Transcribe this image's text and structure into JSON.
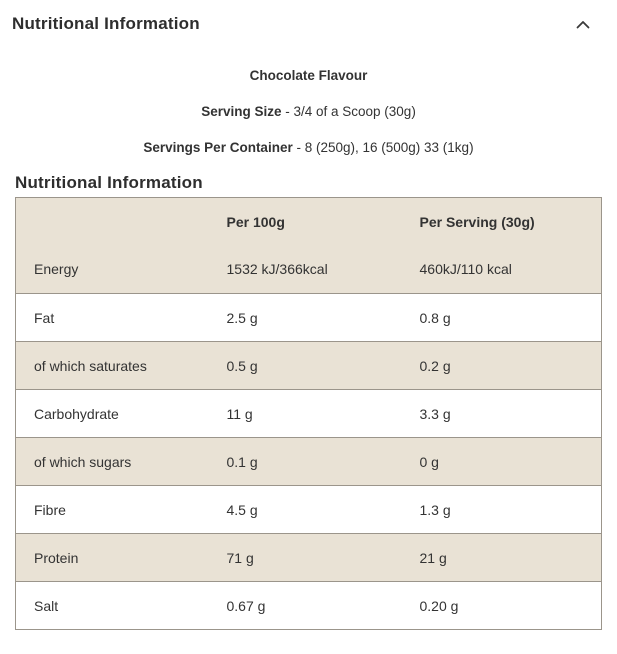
{
  "accordion": {
    "title": "Nutritional Information",
    "chevron_icon": "chevron-up"
  },
  "product_info": {
    "flavour": "Chocolate Flavour",
    "serving_size_label": "Serving Size",
    "serving_size_value": " - 3/4 of a Scoop (30g)",
    "servings_per_container_label": "Servings Per Container",
    "servings_per_container_value": " - 8 (250g), 16 (500g) 33 (1kg)"
  },
  "section_title": "Nutritional Information",
  "table": {
    "columns": [
      "",
      "Per 100g",
      "Per Serving (30g)"
    ],
    "rows": [
      {
        "name": "Energy",
        "per_100g": "1532 kJ/366kcal",
        "per_serving": "460kJ/110 kcal"
      },
      {
        "name": "Fat",
        "per_100g": "2.5 g",
        "per_serving": "0.8 g"
      },
      {
        "name": "of which saturates",
        "per_100g": "0.5 g",
        "per_serving": "0.2 g"
      },
      {
        "name": "Carbohydrate",
        "per_100g": "11 g",
        "per_serving": "3.3 g"
      },
      {
        "name": "of which sugars",
        "per_100g": "0.1 g",
        "per_serving": "0 g"
      },
      {
        "name": "Fibre",
        "per_100g": "4.5 g",
        "per_serving": "1.3 g"
      },
      {
        "name": "Protein",
        "per_100g": "71 g",
        "per_serving": "21 g"
      },
      {
        "name": "Salt",
        "per_100g": "0.67 g",
        "per_serving": "0.20 g"
      }
    ]
  },
  "colors": {
    "row_beige": "#e9e2d5",
    "row_white": "#ffffff",
    "border": "#9b958b",
    "text": "#333333"
  }
}
